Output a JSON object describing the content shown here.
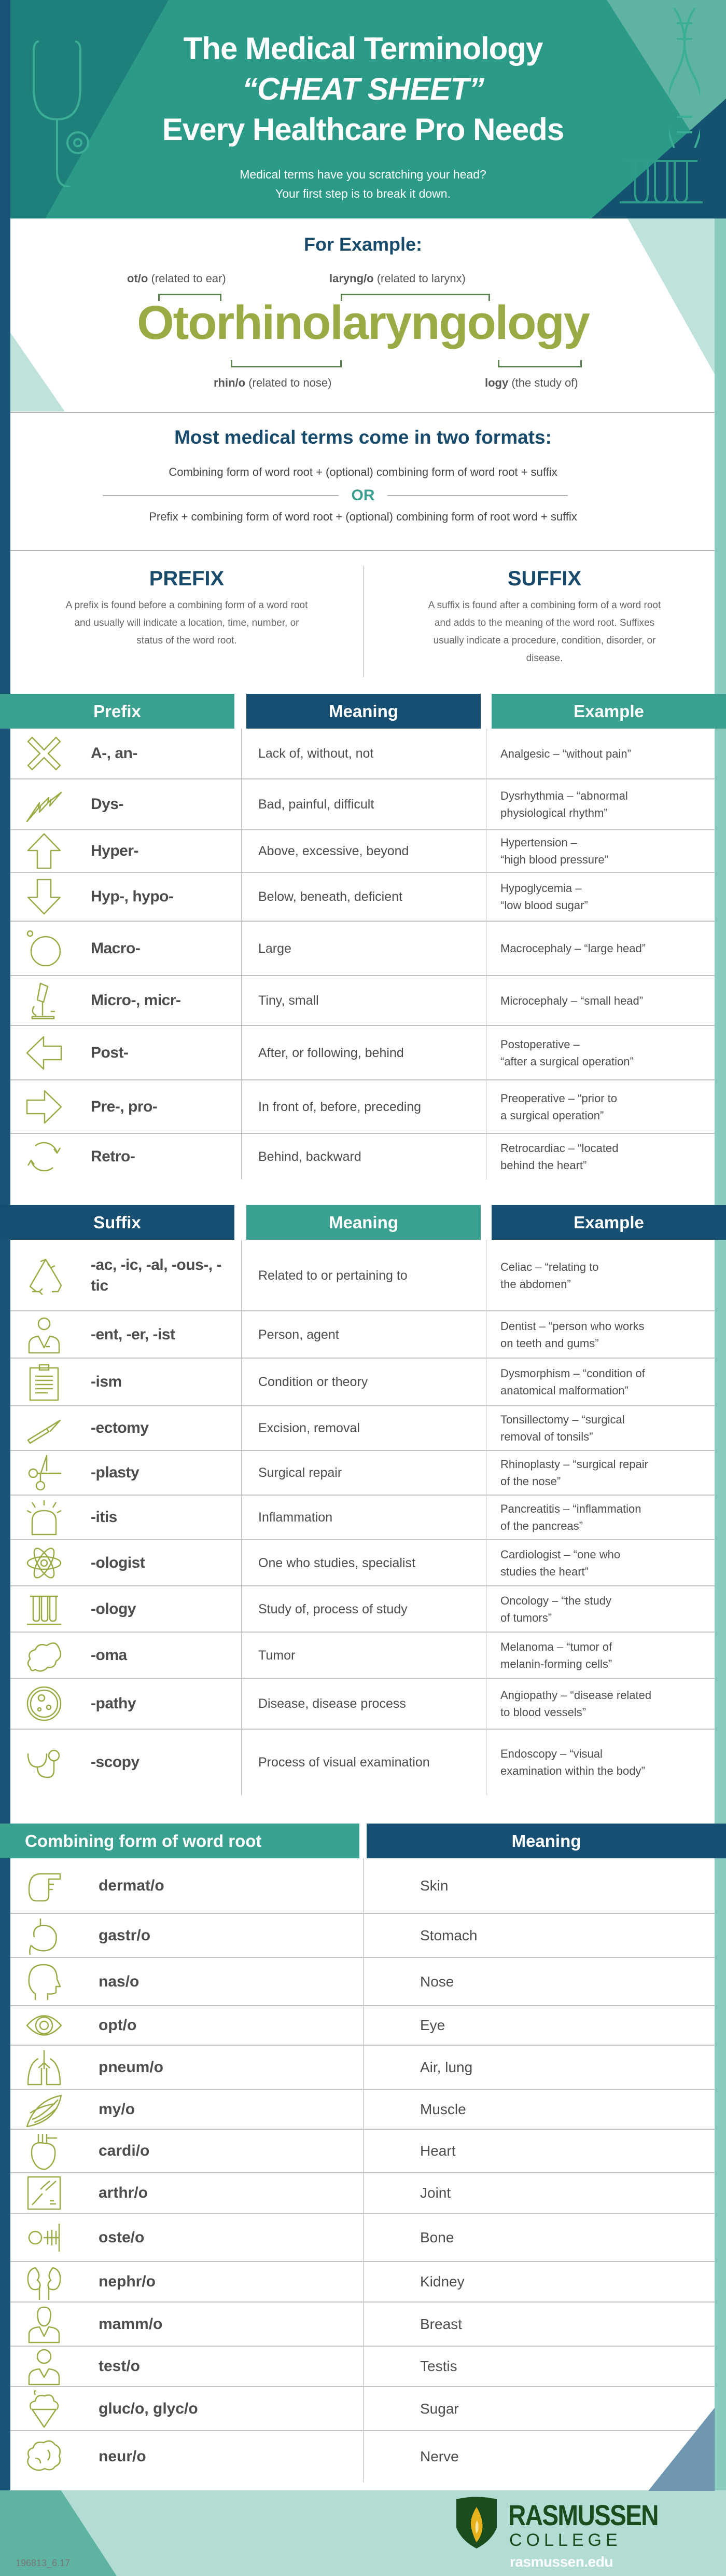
{
  "header": {
    "title_line1": "The Medical Terminology",
    "title_line2": "“CHEAT SHEET”",
    "title_line3": "Every Healthcare Pro Needs",
    "subtitle_line1": "Medical terms have you scratching your head?",
    "subtitle_line2": "Your first step is to break it down."
  },
  "example": {
    "heading": "For Example:",
    "word": "Otorhinolaryngology",
    "parts": [
      {
        "term": "ot/o",
        "note": "(related to ear)"
      },
      {
        "term": "laryng/o",
        "note": "(related to larynx)"
      },
      {
        "term": "rhin/o",
        "note": "(related to nose)"
      },
      {
        "term": "logy",
        "note": "(the study of)"
      }
    ]
  },
  "formats": {
    "heading": "Most medical terms come in two formats:",
    "format1": "Combining form of word root + (optional) combining form of word root + suffix",
    "or": "OR",
    "format2": "Prefix + combining form of word root + (optional) combining form of root word + suffix"
  },
  "definitions": {
    "prefix": {
      "title": "PREFIX",
      "text": "A prefix is found before a combining form of a word root and usually will indicate a location, time, number, or status of the word root."
    },
    "suffix": {
      "title": "SUFFIX",
      "text": "A suffix is found after a combining form of a word root and adds to the meaning of the word root. Suffixes usually indicate a procedure, condition, disorder, or disease."
    }
  },
  "prefix_table": {
    "headers": [
      "Prefix",
      "Meaning",
      "Example"
    ],
    "rows": [
      {
        "icon": "x-icon",
        "term": "A-, an-",
        "meaning": "Lack of, without, not",
        "example": [
          "Analgesic – “without pain”"
        ]
      },
      {
        "icon": "lightning-icon",
        "term": "Dys-",
        "meaning": "Bad, painful, difficult",
        "example": [
          "Dysrhythmia – “abnormal",
          "physiological rhythm”"
        ]
      },
      {
        "icon": "arrow-up-icon",
        "term": "Hyper-",
        "meaning": "Above, excessive, beyond",
        "example": [
          "Hypertension –",
          "“high blood pressure”"
        ]
      },
      {
        "icon": "arrow-down-icon",
        "term": "Hyp-, hypo-",
        "meaning": "Below, beneath, deficient",
        "example": [
          "Hypoglycemia –",
          "“low blood sugar”"
        ]
      },
      {
        "icon": "circle-icon",
        "term": "Macro-",
        "meaning": "Large",
        "example": [
          "Macrocephaly – “large head”"
        ]
      },
      {
        "icon": "microscope-icon",
        "term": "Micro-, micr-",
        "meaning": "Tiny, small",
        "example": [
          "Microcephaly – “small head”"
        ]
      },
      {
        "icon": "arrow-left-icon",
        "term": "Post-",
        "meaning": "After, or following, behind",
        "example": [
          "Postoperative –",
          "“after a surgical operation”"
        ]
      },
      {
        "icon": "arrow-right-icon",
        "term": "Pre-, pro-",
        "meaning": "In front of, before, preceding",
        "example": [
          "Preoperative – “prior to",
          "a surgical operation”"
        ]
      },
      {
        "icon": "refresh-icon",
        "term": "Retro-",
        "meaning": "Behind, backward",
        "example": [
          "Retrocardiac – “located",
          "behind the heart”"
        ]
      }
    ]
  },
  "suffix_table": {
    "headers": [
      "Suffix",
      "Meaning",
      "Example"
    ],
    "rows": [
      {
        "icon": "recycle-icon",
        "term": "-ac, -ic, -al, -ous-, -tic",
        "meaning": "Related to or pertaining to",
        "example": [
          "Celiac – “relating to",
          "the abdomen”"
        ]
      },
      {
        "icon": "person-icon",
        "term": "-ent, -er, -ist",
        "meaning": "Person, agent",
        "example": [
          "Dentist – “person who works",
          "on teeth and gums”"
        ]
      },
      {
        "icon": "clipboard-icon",
        "term": "-ism",
        "meaning": "Condition or theory",
        "example": [
          "Dysmorphism – “condition of",
          "anatomical malformation”"
        ]
      },
      {
        "icon": "scalpel-icon",
        "term": "-ectomy",
        "meaning": "Excision, removal",
        "example": [
          "Tonsillectomy – “surgical",
          "removal of tonsils”"
        ]
      },
      {
        "icon": "scissors-icon",
        "term": "-plasty",
        "meaning": "Surgical repair",
        "example": [
          "Rhinoplasty – “surgical repair",
          "of the nose”"
        ]
      },
      {
        "icon": "alarm-icon",
        "term": "-itis",
        "meaning": "Inflammation",
        "example": [
          "Pancreatitis – “inflammation",
          "of the pancreas”"
        ]
      },
      {
        "icon": "atom-icon",
        "term": "-ologist",
        "meaning": "One who studies, specialist",
        "example": [
          "Cardiologist – “one who",
          "studies the heart”"
        ]
      },
      {
        "icon": "test-tubes-icon",
        "term": "-ology",
        "meaning": "Study of, process of study",
        "example": [
          "Oncology – “the study",
          "of tumors”"
        ]
      },
      {
        "icon": "cloud-icon",
        "term": "-oma",
        "meaning": "Tumor",
        "example": [
          "Melanoma – “tumor of",
          "melanin-forming cells”"
        ]
      },
      {
        "icon": "petri-dish-icon",
        "term": "-pathy",
        "meaning": "Disease, disease process",
        "example": [
          "Angiopathy – “disease related",
          "to blood vessels”"
        ]
      },
      {
        "icon": "stethoscope-icon",
        "term": "-scopy",
        "meaning": "Process of visual examination",
        "example": [
          "Endoscopy – “visual",
          "examination within the body”"
        ]
      }
    ]
  },
  "root_table": {
    "headers": [
      "Combining form of word root",
      "Meaning"
    ],
    "rows": [
      {
        "icon": "pointing-hand-icon",
        "term": "dermat/o",
        "meaning": "Skin"
      },
      {
        "icon": "stomach-icon",
        "term": "gastr/o",
        "meaning": "Stomach"
      },
      {
        "icon": "head-profile-icon",
        "term": "nas/o",
        "meaning": "Nose"
      },
      {
        "icon": "eye-icon",
        "term": "opt/o",
        "meaning": "Eye"
      },
      {
        "icon": "lungs-icon",
        "term": "pneum/o",
        "meaning": "Air, lung"
      },
      {
        "icon": "muscle-icon",
        "term": "my/o",
        "meaning": "Muscle"
      },
      {
        "icon": "heart-icon",
        "term": "cardi/o",
        "meaning": "Heart"
      },
      {
        "icon": "xray-joint-icon",
        "term": "arthr/o",
        "meaning": "Joint"
      },
      {
        "icon": "skeleton-icon",
        "term": "oste/o",
        "meaning": "Bone"
      },
      {
        "icon": "kidneys-icon",
        "term": "nephr/o",
        "meaning": "Kidney"
      },
      {
        "icon": "woman-icon",
        "term": "mamm/o",
        "meaning": "Breast"
      },
      {
        "icon": "man-icon",
        "term": "test/o",
        "meaning": "Testis"
      },
      {
        "icon": "ice-cream-icon",
        "term": "gluc/o, glyc/o",
        "meaning": "Sugar"
      },
      {
        "icon": "brain-icon",
        "term": "neur/o",
        "meaning": "Nerve"
      }
    ]
  },
  "footer": {
    "code": "196813_6.17",
    "logo_name": "RASMUSSEN",
    "logo_sub": "COLLEGE",
    "url": "rasmussen.edu"
  },
  "colors": {
    "teal": "#3aa08f",
    "navy": "#174f72",
    "olive": "#9aab45",
    "text": "#4d4d4d",
    "logo_green": "#1a4d1e"
  }
}
